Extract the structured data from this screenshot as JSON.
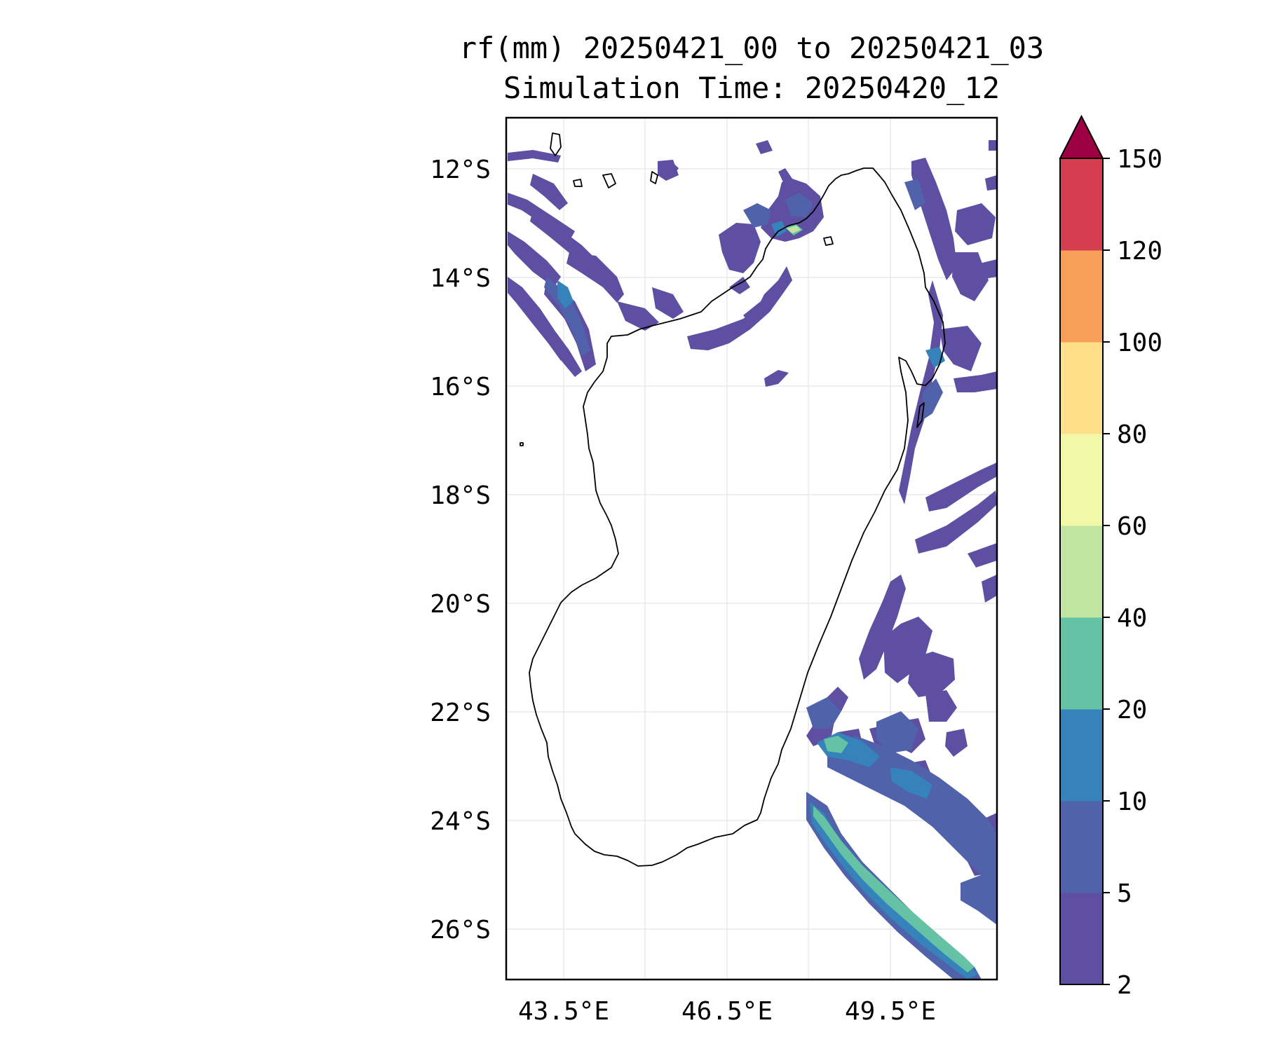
{
  "title_line1": "rf(mm) 20250421_00 to 20250421_03",
  "title_line2": "Simulation Time: 20250420_12",
  "lat_ticks": [
    "12°S",
    "14°S",
    "16°S",
    "18°S",
    "20°S",
    "22°S",
    "24°S",
    "26°S"
  ],
  "lon_ticks": [
    "43.5°E",
    "46.5°E",
    "49.5°E"
  ],
  "colorbar": {
    "levels": [
      2,
      5,
      10,
      20,
      40,
      60,
      80,
      100,
      120,
      150
    ],
    "tick_labels": [
      "2",
      "5",
      "10",
      "20",
      "40",
      "60",
      "80",
      "100",
      "120",
      "150"
    ],
    "colors": [
      "#5e4fa2",
      "#4f62aa",
      "#3682ba",
      "#66c2a5",
      "#bfe5a0",
      "#f1f9a9",
      "#fee08b",
      "#f99f5a",
      "#d53e4f",
      "#9e0142"
    ],
    "extend": "max",
    "extend_color": "#9e0142"
  },
  "map": {
    "region": "Madagascar",
    "lon_range": [
      42.45,
      51.45
    ],
    "lat_range": [
      -26.95,
      -11.0
    ],
    "grid": true,
    "coastline_color": "#000000"
  }
}
